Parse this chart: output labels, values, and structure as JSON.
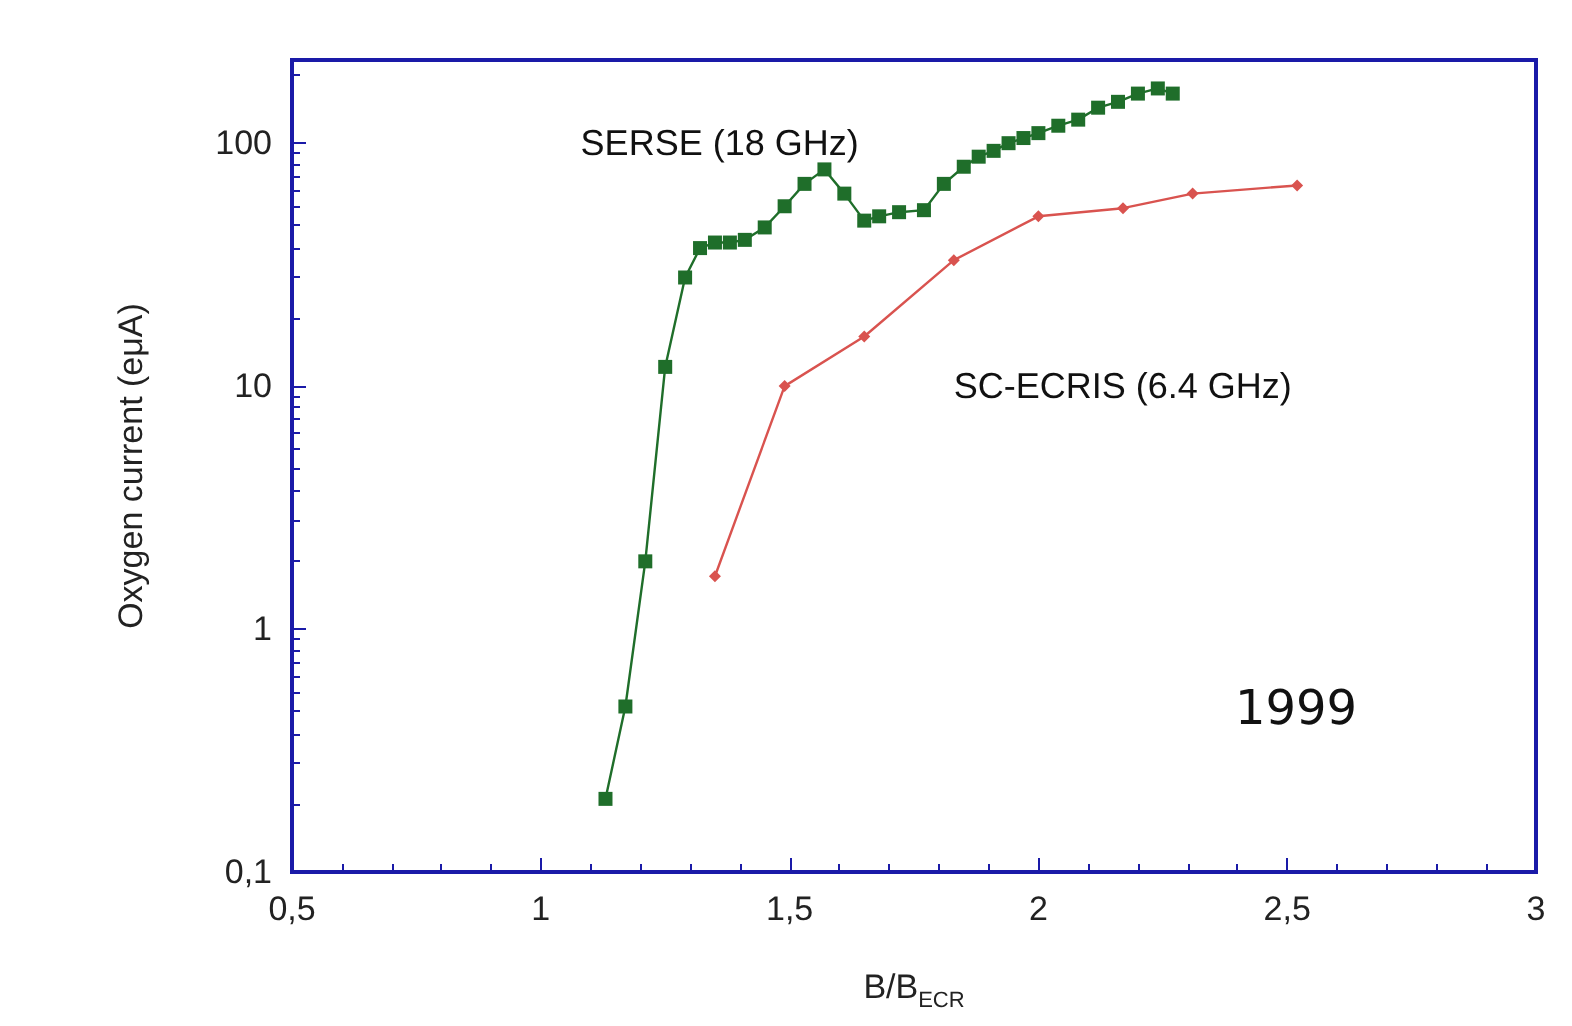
{
  "chart_data": {
    "type": "line",
    "xlabel": "B/B$_{ECR}$",
    "ylabel": "Oxygen current (eμA)",
    "log": "y",
    "grid": false,
    "legend": false,
    "xlim": [
      0.5,
      3
    ],
    "xticks": [
      {
        "value": 0.5,
        "label": "0,5"
      },
      1,
      {
        "value": 1.5,
        "label": "1,5"
      },
      2,
      {
        "value": 2.5,
        "label": "2,5"
      },
      3
    ],
    "ylim": [
      0.1,
      220
    ],
    "yticks": [
      {
        "value": 0.1,
        "label": "0,1"
      },
      1,
      10,
      100
    ],
    "series": [
      {
        "name": "SERSE (18 GHz)",
        "color": "#1f6e2a",
        "marker": "square",
        "x": [
          1.13,
          1.17,
          1.21,
          1.25,
          1.29,
          1.32,
          1.35,
          1.38,
          1.41,
          1.45,
          1.49,
          1.53,
          1.57,
          1.61,
          1.65,
          1.68,
          1.72,
          1.77,
          1.81,
          1.85,
          1.88,
          1.91,
          1.94,
          1.97,
          2.0,
          2.04,
          2.08,
          2.12,
          2.16,
          2.2,
          2.24,
          2.27
        ],
        "values": [
          0.2,
          0.48,
          1.9,
          12,
          28,
          37,
          39,
          39,
          40,
          45,
          55,
          68,
          78,
          62,
          48,
          50,
          52,
          53,
          68,
          80,
          88,
          93,
          100,
          105,
          110,
          118,
          125,
          140,
          148,
          160,
          168,
          160
        ]
      },
      {
        "name": "SC-ECRIS (6.4 GHz)",
        "color": "#d9534f",
        "marker": "diamond",
        "x": [
          1.35,
          1.49,
          1.65,
          1.83,
          2.0,
          2.17,
          2.31,
          2.52
        ],
        "values": [
          1.65,
          10,
          16,
          33,
          50,
          54,
          62,
          67
        ]
      }
    ],
    "annotations": [
      "1999"
    ]
  }
}
